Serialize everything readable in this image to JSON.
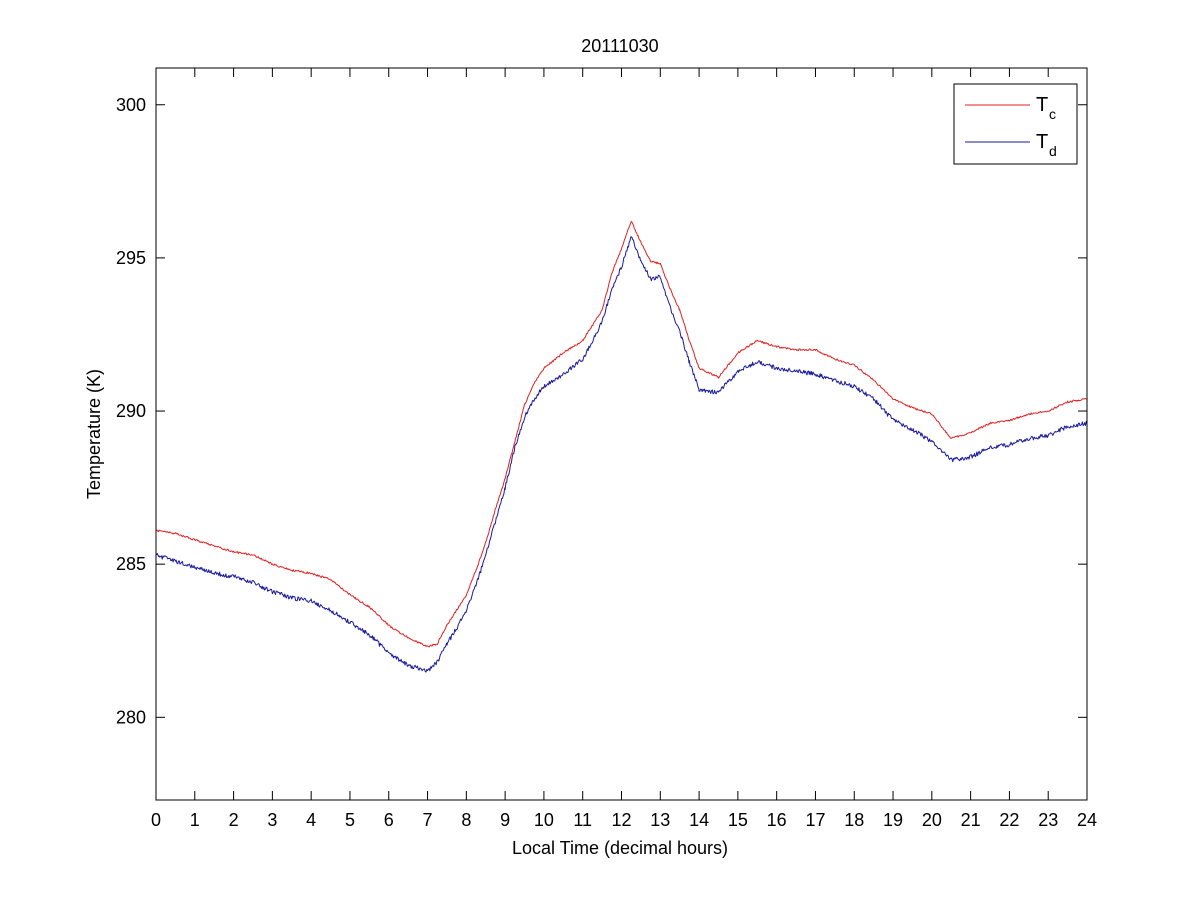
{
  "chart_data": {
    "type": "line",
    "title": "20111030",
    "xlabel": "Local Time (decimal hours)",
    "ylabel": "Temperature (K)",
    "xlim": [
      0,
      24
    ],
    "ylim": [
      277.3,
      301.2
    ],
    "xticks": [
      0,
      1,
      2,
      3,
      4,
      5,
      6,
      7,
      8,
      9,
      10,
      11,
      12,
      13,
      14,
      15,
      16,
      17,
      18,
      19,
      20,
      21,
      22,
      23,
      24
    ],
    "xtick_labels": [
      "0",
      "1",
      "2",
      "3",
      "4",
      "5",
      "6",
      "7",
      "8",
      "9",
      "10",
      "11",
      "12",
      "13",
      "14",
      "15",
      "16",
      "17",
      "18",
      "19",
      "20",
      "21",
      "22",
      "23",
      "24"
    ],
    "yticks": [
      280,
      285,
      290,
      295,
      300
    ],
    "ytick_labels": [
      "280",
      "285",
      "290",
      "295",
      "300"
    ],
    "grid": false,
    "legend_position": "top-right",
    "colors": {
      "tc": "#e02020",
      "td": "#1a1a9e"
    },
    "series": [
      {
        "name": "T",
        "subscript": "c",
        "color": "#e02020",
        "x": [
          0,
          0.5,
          1,
          1.5,
          2,
          2.5,
          3,
          3.5,
          4,
          4.5,
          5,
          5.5,
          6,
          6.5,
          7,
          7.25,
          7.5,
          7.75,
          8,
          8.25,
          8.5,
          8.75,
          9,
          9.25,
          9.5,
          9.75,
          10,
          10.5,
          11,
          11.5,
          11.75,
          12,
          12.25,
          12.5,
          12.75,
          13,
          13.25,
          13.5,
          13.75,
          14,
          14.5,
          15,
          15.5,
          16,
          16.5,
          17,
          17.5,
          18,
          18.5,
          19,
          19.5,
          20,
          20.5,
          21,
          21.5,
          22,
          22.5,
          23,
          23.5,
          24
        ],
        "y": [
          286.1,
          286.0,
          285.8,
          285.6,
          285.4,
          285.3,
          285.0,
          284.8,
          284.7,
          284.5,
          284.0,
          283.6,
          283.0,
          282.6,
          282.3,
          282.4,
          283.0,
          283.5,
          284.0,
          284.8,
          285.7,
          286.8,
          287.8,
          289.0,
          290.2,
          290.9,
          291.4,
          291.9,
          292.3,
          293.3,
          294.5,
          295.3,
          296.2,
          295.5,
          294.9,
          294.8,
          294.0,
          293.3,
          292.3,
          291.4,
          291.1,
          291.9,
          292.3,
          292.1,
          292.0,
          292.0,
          291.7,
          291.5,
          291.0,
          290.4,
          290.1,
          289.9,
          289.1,
          289.3,
          289.6,
          289.7,
          289.9,
          290.0,
          290.3,
          290.4
        ]
      },
      {
        "name": "T",
        "subscript": "d",
        "color": "#1a1a9e",
        "x": [
          0,
          0.5,
          1,
          1.5,
          2,
          2.5,
          3,
          3.5,
          4,
          4.5,
          5,
          5.5,
          6,
          6.5,
          7,
          7.25,
          7.5,
          7.75,
          8,
          8.25,
          8.5,
          8.75,
          9,
          9.25,
          9.5,
          9.75,
          10,
          10.5,
          11,
          11.5,
          11.75,
          12,
          12.25,
          12.5,
          12.75,
          13,
          13.25,
          13.5,
          13.75,
          14,
          14.5,
          15,
          15.5,
          16,
          16.5,
          17,
          17.5,
          18,
          18.5,
          19,
          19.5,
          20,
          20.5,
          21,
          21.5,
          22,
          22.5,
          23,
          23.5,
          24
        ],
        "y": [
          285.3,
          285.1,
          284.9,
          284.7,
          284.6,
          284.4,
          284.1,
          283.9,
          283.8,
          283.5,
          283.1,
          282.7,
          282.1,
          281.7,
          281.5,
          281.8,
          282.4,
          282.9,
          283.5,
          284.3,
          285.3,
          286.4,
          287.5,
          288.8,
          289.8,
          290.4,
          290.8,
          291.2,
          291.7,
          292.9,
          294.0,
          294.7,
          295.7,
          294.9,
          294.3,
          294.4,
          293.4,
          292.6,
          291.6,
          290.7,
          290.6,
          291.3,
          291.6,
          291.4,
          291.3,
          291.2,
          291.0,
          290.8,
          290.4,
          289.7,
          289.4,
          289.0,
          288.4,
          288.5,
          288.8,
          288.9,
          289.1,
          289.2,
          289.5,
          289.6
        ]
      }
    ]
  }
}
